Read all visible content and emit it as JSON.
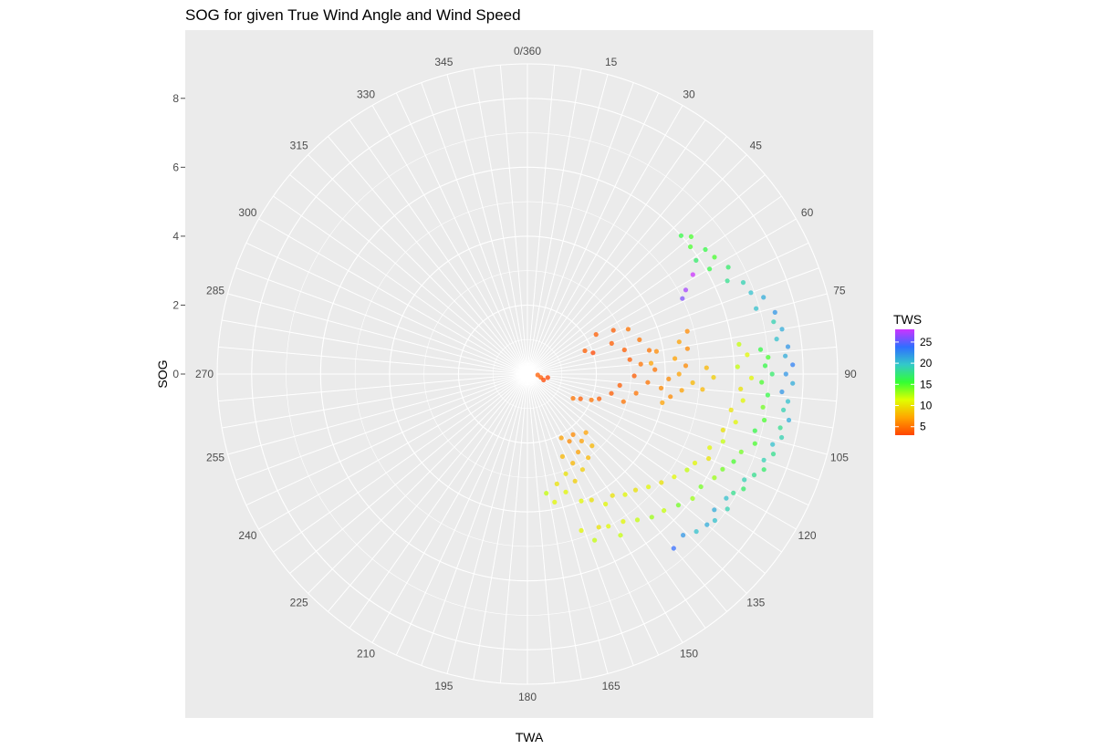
{
  "chart_data": {
    "type": "scatter",
    "coord": "polar",
    "title": "SOG for given True Wind Angle and Wind Speed",
    "xlabel": "TWA",
    "ylabel": "SOG",
    "angle_unit": "degrees",
    "angle_ticks": [
      "0/360",
      "15",
      "30",
      "45",
      "60",
      "75",
      "90",
      "105",
      "120",
      "135",
      "150",
      "165",
      "180",
      "195",
      "210",
      "225",
      "240",
      "255",
      "270",
      "285",
      "300",
      "315",
      "330",
      "345"
    ],
    "radius_ticks": [
      "0",
      "2",
      "4",
      "6",
      "8"
    ],
    "radius_range": [
      0,
      9
    ],
    "grid": true,
    "legend": {
      "title": "TWS",
      "position": "right",
      "ticks": [
        "5",
        "10",
        "15",
        "20",
        "25"
      ],
      "range": [
        3,
        28
      ],
      "gradient": [
        "#FF4500",
        "#FFA500",
        "#E0FF00",
        "#33FF33",
        "#33C9C9",
        "#2F6FFF",
        "#CC33FF"
      ]
    },
    "points": [
      {
        "twa": 59,
        "sog": 5.6,
        "tws": 28
      },
      {
        "twa": 62,
        "sog": 5.2,
        "tws": 27
      },
      {
        "twa": 64,
        "sog": 5.0,
        "tws": 26
      },
      {
        "twa": 50,
        "sog": 6.2,
        "tws": 15
      },
      {
        "twa": 48,
        "sog": 6.0,
        "tws": 16
      },
      {
        "twa": 52,
        "sog": 6.0,
        "tws": 15
      },
      {
        "twa": 55,
        "sog": 6.3,
        "tws": 16
      },
      {
        "twa": 56,
        "sog": 5.9,
        "tws": 17
      },
      {
        "twa": 58,
        "sog": 6.4,
        "tws": 15
      },
      {
        "twa": 60,
        "sog": 6.1,
        "tws": 16
      },
      {
        "twa": 62,
        "sog": 6.6,
        "tws": 17
      },
      {
        "twa": 65,
        "sog": 6.4,
        "tws": 18
      },
      {
        "twa": 67,
        "sog": 6.8,
        "tws": 19
      },
      {
        "twa": 70,
        "sog": 6.9,
        "tws": 20
      },
      {
        "twa": 72,
        "sog": 7.2,
        "tws": 21
      },
      {
        "twa": 74,
        "sog": 6.9,
        "tws": 20
      },
      {
        "twa": 76,
        "sog": 7.4,
        "tws": 22
      },
      {
        "twa": 78,
        "sog": 7.3,
        "tws": 19
      },
      {
        "twa": 80,
        "sog": 7.5,
        "tws": 21
      },
      {
        "twa": 82,
        "sog": 7.3,
        "tws": 20
      },
      {
        "twa": 84,
        "sog": 7.6,
        "tws": 22
      },
      {
        "twa": 86,
        "sog": 7.5,
        "tws": 21
      },
      {
        "twa": 88,
        "sog": 7.7,
        "tws": 23
      },
      {
        "twa": 90,
        "sog": 7.5,
        "tws": 22
      },
      {
        "twa": 92,
        "sog": 7.7,
        "tws": 21
      },
      {
        "twa": 94,
        "sog": 7.4,
        "tws": 22
      },
      {
        "twa": 96,
        "sog": 7.6,
        "tws": 20
      },
      {
        "twa": 98,
        "sog": 7.5,
        "tws": 19
      },
      {
        "twa": 100,
        "sog": 7.7,
        "tws": 21
      },
      {
        "twa": 102,
        "sog": 7.5,
        "tws": 18
      },
      {
        "twa": 104,
        "sog": 7.6,
        "tws": 19
      },
      {
        "twa": 106,
        "sog": 7.4,
        "tws": 20
      },
      {
        "twa": 108,
        "sog": 7.5,
        "tws": 18
      },
      {
        "twa": 110,
        "sog": 7.3,
        "tws": 19
      },
      {
        "twa": 112,
        "sog": 7.4,
        "tws": 17
      },
      {
        "twa": 114,
        "sog": 7.2,
        "tws": 18
      },
      {
        "twa": 116,
        "sog": 7.0,
        "tws": 19
      },
      {
        "twa": 118,
        "sog": 7.1,
        "tws": 17
      },
      {
        "twa": 120,
        "sog": 6.9,
        "tws": 18
      },
      {
        "twa": 122,
        "sog": 6.8,
        "tws": 20
      },
      {
        "twa": 124,
        "sog": 7.0,
        "tws": 19
      },
      {
        "twa": 126,
        "sog": 6.7,
        "tws": 21
      },
      {
        "twa": 128,
        "sog": 6.9,
        "tws": 20
      },
      {
        "twa": 130,
        "sog": 6.8,
        "tws": 21
      },
      {
        "twa": 133,
        "sog": 6.7,
        "tws": 20
      },
      {
        "twa": 136,
        "sog": 6.5,
        "tws": 22
      },
      {
        "twa": 140,
        "sog": 6.6,
        "tws": 24
      },
      {
        "twa": 84,
        "sog": 6.8,
        "tws": 16
      },
      {
        "twa": 86,
        "sog": 7.0,
        "tws": 15
      },
      {
        "twa": 88,
        "sog": 6.9,
        "tws": 16
      },
      {
        "twa": 90,
        "sog": 7.1,
        "tws": 17
      },
      {
        "twa": 92,
        "sog": 6.8,
        "tws": 15
      },
      {
        "twa": 95,
        "sog": 7.0,
        "tws": 16
      },
      {
        "twa": 98,
        "sog": 6.9,
        "tws": 14
      },
      {
        "twa": 101,
        "sog": 7.0,
        "tws": 15
      },
      {
        "twa": 104,
        "sog": 6.8,
        "tws": 16
      },
      {
        "twa": 107,
        "sog": 6.9,
        "tws": 15
      },
      {
        "twa": 110,
        "sog": 6.6,
        "tws": 14
      },
      {
        "twa": 113,
        "sog": 6.5,
        "tws": 15
      },
      {
        "twa": 116,
        "sog": 6.3,
        "tws": 14
      },
      {
        "twa": 119,
        "sog": 6.2,
        "tws": 13
      },
      {
        "twa": 123,
        "sog": 6.0,
        "tws": 14
      },
      {
        "twa": 127,
        "sog": 6.0,
        "tws": 13
      },
      {
        "twa": 131,
        "sog": 5.8,
        "tws": 14
      },
      {
        "twa": 135,
        "sog": 5.6,
        "tws": 12
      },
      {
        "twa": 139,
        "sog": 5.5,
        "tws": 13
      },
      {
        "twa": 143,
        "sog": 5.3,
        "tws": 12
      },
      {
        "twa": 147,
        "sog": 5.1,
        "tws": 11
      },
      {
        "twa": 150,
        "sog": 5.4,
        "tws": 12
      },
      {
        "twa": 152,
        "sog": 5.0,
        "tws": 11
      },
      {
        "twa": 155,
        "sog": 4.9,
        "tws": 10
      },
      {
        "twa": 158,
        "sog": 5.2,
        "tws": 12
      },
      {
        "twa": 161,
        "sog": 4.8,
        "tws": 11
      },
      {
        "twa": 82,
        "sog": 6.2,
        "tws": 12
      },
      {
        "twa": 85,
        "sog": 6.4,
        "tws": 11
      },
      {
        "twa": 88,
        "sog": 6.1,
        "tws": 12
      },
      {
        "twa": 91,
        "sog": 6.5,
        "tws": 11
      },
      {
        "twa": 94,
        "sog": 6.2,
        "tws": 10
      },
      {
        "twa": 97,
        "sog": 6.3,
        "tws": 11
      },
      {
        "twa": 100,
        "sog": 6.0,
        "tws": 10
      },
      {
        "twa": 103,
        "sog": 6.2,
        "tws": 11
      },
      {
        "twa": 106,
        "sog": 5.9,
        "tws": 10
      },
      {
        "twa": 109,
        "sog": 6.0,
        "tws": 12
      },
      {
        "twa": 112,
        "sog": 5.7,
        "tws": 11
      },
      {
        "twa": 115,
        "sog": 5.8,
        "tws": 10
      },
      {
        "twa": 118,
        "sog": 5.5,
        "tws": 11
      },
      {
        "twa": 121,
        "sog": 5.4,
        "tws": 12
      },
      {
        "twa": 125,
        "sog": 5.2,
        "tws": 11
      },
      {
        "twa": 129,
        "sog": 5.0,
        "tws": 10
      },
      {
        "twa": 133,
        "sog": 4.8,
        "tws": 11
      },
      {
        "twa": 137,
        "sog": 4.6,
        "tws": 10
      },
      {
        "twa": 141,
        "sog": 4.5,
        "tws": 11
      },
      {
        "twa": 145,
        "sog": 4.3,
        "tws": 10
      },
      {
        "twa": 149,
        "sog": 4.4,
        "tws": 11
      },
      {
        "twa": 153,
        "sog": 4.1,
        "tws": 10
      },
      {
        "twa": 157,
        "sog": 4.0,
        "tws": 11
      },
      {
        "twa": 75,
        "sog": 4.8,
        "tws": 6
      },
      {
        "twa": 78,
        "sog": 4.5,
        "tws": 7
      },
      {
        "twa": 81,
        "sog": 4.7,
        "tws": 6
      },
      {
        "twa": 84,
        "sog": 4.3,
        "tws": 7
      },
      {
        "twa": 87,
        "sog": 4.6,
        "tws": 6
      },
      {
        "twa": 90,
        "sog": 4.4,
        "tws": 7
      },
      {
        "twa": 93,
        "sog": 4.8,
        "tws": 8
      },
      {
        "twa": 96,
        "sog": 4.5,
        "tws": 7
      },
      {
        "twa": 99,
        "sog": 4.2,
        "tws": 6
      },
      {
        "twa": 102,
        "sog": 4.0,
        "tws": 7
      },
      {
        "twa": 88,
        "sog": 5.2,
        "tws": 8
      },
      {
        "twa": 91,
        "sog": 5.4,
        "tws": 9
      },
      {
        "twa": 95,
        "sog": 5.1,
        "tws": 8
      },
      {
        "twa": 80,
        "sog": 3.8,
        "tws": 6
      },
      {
        "twa": 85,
        "sog": 3.6,
        "tws": 7
      },
      {
        "twa": 60,
        "sog": 2.3,
        "tws": 4
      },
      {
        "twa": 63,
        "sog": 2.8,
        "tws": 4
      },
      {
        "twa": 66,
        "sog": 3.2,
        "tws": 5
      },
      {
        "twa": 70,
        "sog": 2.6,
        "tws": 4
      },
      {
        "twa": 73,
        "sog": 3.4,
        "tws": 5
      },
      {
        "twa": 76,
        "sog": 2.9,
        "tws": 4
      },
      {
        "twa": 79,
        "sog": 3.6,
        "tws": 5
      },
      {
        "twa": 82,
        "sog": 3.0,
        "tws": 4
      },
      {
        "twa": 85,
        "sog": 3.3,
        "tws": 5
      },
      {
        "twa": 88,
        "sog": 3.7,
        "tws": 5
      },
      {
        "twa": 91,
        "sog": 3.1,
        "tws": 4
      },
      {
        "twa": 94,
        "sog": 3.5,
        "tws": 5
      },
      {
        "twa": 97,
        "sog": 2.7,
        "tws": 4
      },
      {
        "twa": 100,
        "sog": 3.2,
        "tws": 5
      },
      {
        "twa": 103,
        "sog": 2.5,
        "tws": 4
      },
      {
        "twa": 106,
        "sog": 2.9,
        "tws": 5
      },
      {
        "twa": 109,
        "sog": 2.2,
        "tws": 4
      },
      {
        "twa": 112,
        "sog": 2.0,
        "tws": 5
      },
      {
        "twa": 115,
        "sog": 1.7,
        "tws": 4
      },
      {
        "twa": 118,
        "sog": 1.5,
        "tws": 5
      },
      {
        "twa": 72,
        "sog": 2.0,
        "tws": 3
      },
      {
        "twa": 68,
        "sog": 1.8,
        "tws": 4
      },
      {
        "twa": 92,
        "sog": 4.1,
        "tws": 6
      },
      {
        "twa": 96,
        "sog": 3.9,
        "tws": 6
      },
      {
        "twa": 100,
        "sog": 0.6,
        "tws": 3
      },
      {
        "twa": 104,
        "sog": 0.4,
        "tws": 4
      },
      {
        "twa": 110,
        "sog": 0.5,
        "tws": 3
      },
      {
        "twa": 95,
        "sog": 0.3,
        "tws": 4
      },
      {
        "twa": 135,
        "sog": 2.4,
        "tws": 7
      },
      {
        "twa": 138,
        "sog": 2.8,
        "tws": 8
      },
      {
        "twa": 141,
        "sog": 2.5,
        "tws": 7
      },
      {
        "twa": 144,
        "sog": 3.0,
        "tws": 8
      },
      {
        "twa": 147,
        "sog": 2.7,
        "tws": 7
      },
      {
        "twa": 150,
        "sog": 3.2,
        "tws": 9
      },
      {
        "twa": 153,
        "sog": 2.9,
        "tws": 8
      },
      {
        "twa": 156,
        "sog": 3.4,
        "tws": 9
      },
      {
        "twa": 159,
        "sog": 3.1,
        "tws": 10
      },
      {
        "twa": 162,
        "sog": 3.6,
        "tws": 11
      },
      {
        "twa": 165,
        "sog": 3.3,
        "tws": 10
      },
      {
        "twa": 168,
        "sog": 3.8,
        "tws": 11
      },
      {
        "twa": 171,
        "sog": 3.5,
        "tws": 12
      },
      {
        "twa": 148,
        "sog": 2.3,
        "tws": 6
      },
      {
        "twa": 152,
        "sog": 2.1,
        "tws": 7
      },
      {
        "twa": 143,
        "sog": 2.2,
        "tws": 6
      },
      {
        "twa": 157,
        "sog": 2.6,
        "tws": 8
      }
    ]
  }
}
